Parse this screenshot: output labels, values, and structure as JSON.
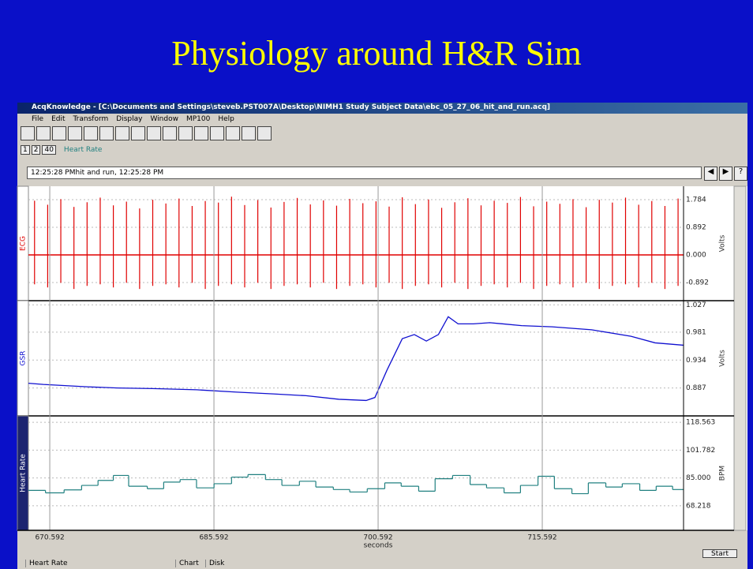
{
  "slide_title": "Physiology around H&R Sim",
  "window": {
    "title": "AcqKnowledge - [C:\\Documents and Settings\\steveb.PST007A\\Desktop\\NIMH1 Study Subject Data\\ebc_05_27_06_hit_and_run.acq]",
    "menus": [
      "File",
      "Edit",
      "Transform",
      "Display",
      "Window",
      "MP100",
      "Help"
    ],
    "view_buttons": [
      "1",
      "2",
      "40"
    ],
    "active_channel": "Heart Rate",
    "journal": "12:25:28 PMhit and run, 12:25:28 PM",
    "help_button": "?",
    "start_button": "Start",
    "status": [
      "Heart Rate",
      "Chart",
      "Disk"
    ]
  },
  "chart_data": [
    {
      "type": "spike",
      "channel": "ECG",
      "unit": "Volts",
      "color": "#e00000",
      "label_color": "#e00000",
      "strip": "#ffffff",
      "xlim": [
        668.64,
        728.5
      ],
      "ylim": [
        -1.478,
        2.217
      ],
      "yticks": [
        1.784,
        0.892,
        {
          "value": 0,
          "label": "0.000"
        },
        -0.892
      ],
      "grid": true,
      "x": [
        669.2,
        670.4,
        671.6,
        672.8,
        674.0,
        675.2,
        676.4,
        677.6,
        678.8,
        680.0,
        681.2,
        682.4,
        683.6,
        684.8,
        686.0,
        687.2,
        688.4,
        689.6,
        690.8,
        692.0,
        693.2,
        694.4,
        695.6,
        696.8,
        698.0,
        699.2,
        700.4,
        701.6,
        702.8,
        704.0,
        705.2,
        706.4,
        707.6,
        708.8,
        710.0,
        711.2,
        712.4,
        713.6,
        714.8,
        716.0,
        717.2,
        718.4,
        719.6,
        720.8,
        722.0,
        723.2,
        724.4,
        725.6,
        726.8,
        728.0
      ],
      "values": [
        1.75,
        1.62,
        1.8,
        1.55,
        1.7,
        1.85,
        1.6,
        1.72,
        1.5,
        1.78,
        1.66,
        1.82,
        1.58,
        1.74,
        1.69,
        1.88,
        1.61,
        1.77,
        1.53,
        1.71,
        1.84,
        1.63,
        1.76,
        1.59,
        1.81,
        1.67,
        1.73,
        1.56,
        1.86,
        1.64,
        1.79,
        1.52,
        1.7,
        1.83,
        1.6,
        1.75,
        1.68,
        1.87,
        1.57,
        1.72,
        1.65,
        1.8,
        1.54,
        1.78,
        1.69,
        1.85,
        1.62,
        1.74,
        1.58,
        1.82
      ],
      "lows": [
        -0.95,
        -1.05,
        -0.9,
        -1.1,
        -1.0,
        -0.95,
        -1.05,
        -0.9,
        -1.1,
        -1.0,
        -0.95,
        -1.05,
        -0.9,
        -1.1,
        -1.0,
        -0.95,
        -1.05,
        -0.9,
        -1.1,
        -1.0,
        -0.95,
        -1.05,
        -0.9,
        -1.1,
        -1.0,
        -0.95,
        -1.05,
        -0.9,
        -1.1,
        -1.0,
        -0.95,
        -1.05,
        -0.9,
        -1.1,
        -1.0,
        -0.95,
        -1.05,
        -0.9,
        -1.1,
        -1.0,
        -0.95,
        -1.05,
        -0.9,
        -1.1,
        -1.0,
        -0.95,
        -1.05,
        -0.9,
        -1.1,
        -1.0
      ]
    },
    {
      "type": "line",
      "channel": "GSR",
      "unit": "Volts",
      "color": "#1010d0",
      "label_color": "#1010d0",
      "strip": "#ffffff",
      "xlim": [
        668.64,
        728.5
      ],
      "ylim": [
        0.84,
        1.034
      ],
      "yticks": [
        1.027,
        0.981,
        0.934,
        0.887
      ],
      "grid": true,
      "x": [
        668.64,
        670.0,
        672.0,
        674.0,
        676.8,
        680.0,
        684.0,
        687.7,
        691.0,
        694.0,
        697.0,
        699.5,
        700.3,
        701.4,
        702.8,
        703.9,
        705.0,
        706.1,
        707.0,
        707.9,
        709.3,
        710.8,
        713.7,
        716.5,
        720.1,
        723.7,
        725.9,
        728.5
      ],
      "values": [
        0.895,
        0.893,
        0.891,
        0.889,
        0.887,
        0.886,
        0.884,
        0.88,
        0.877,
        0.874,
        0.868,
        0.866,
        0.871,
        0.917,
        0.97,
        0.977,
        0.966,
        0.977,
        1.007,
        0.995,
        0.995,
        0.997,
        0.992,
        0.99,
        0.985,
        0.974,
        0.963,
        0.959
      ]
    },
    {
      "type": "step",
      "channel": "Heart Rate",
      "unit": "BPM",
      "color": "#208080",
      "label_color": "#ffffff",
      "strip": "#1c2470",
      "xlim": [
        668.64,
        728.5
      ],
      "ylim": [
        53.4,
        122.4
      ],
      "yticks": [
        118.563,
        101.782,
        {
          "value": 85,
          "label": "85.000"
        },
        68.218
      ],
      "grid": true,
      "xticks": [
        670.592,
        685.592,
        700.592,
        715.592
      ],
      "xlabel": "seconds",
      "x": [
        668.64,
        670.2,
        671.9,
        673.5,
        675.0,
        676.4,
        677.8,
        679.5,
        681.0,
        682.5,
        684.0,
        685.6,
        687.2,
        688.7,
        690.3,
        691.8,
        693.4,
        694.9,
        696.5,
        698.0,
        699.6,
        701.2,
        702.7,
        704.3,
        705.8,
        707.4,
        709.0,
        710.5,
        712.1,
        713.6,
        715.2,
        716.7,
        718.3,
        719.8,
        721.4,
        722.9,
        724.5,
        726.0,
        727.5
      ],
      "values": [
        77.5,
        76.0,
        77.8,
        80.5,
        83.5,
        86.5,
        80.0,
        78.5,
        82.5,
        84.0,
        79.0,
        81.5,
        85.5,
        87.0,
        84.0,
        80.5,
        83.0,
        79.5,
        78.0,
        76.5,
        78.5,
        82.0,
        80.0,
        77.0,
        84.5,
        86.5,
        81.0,
        79.0,
        76.0,
        80.5,
        86.0,
        78.5,
        75.5,
        82.0,
        79.5,
        81.5,
        77.5,
        80.0,
        78.0
      ]
    }
  ]
}
